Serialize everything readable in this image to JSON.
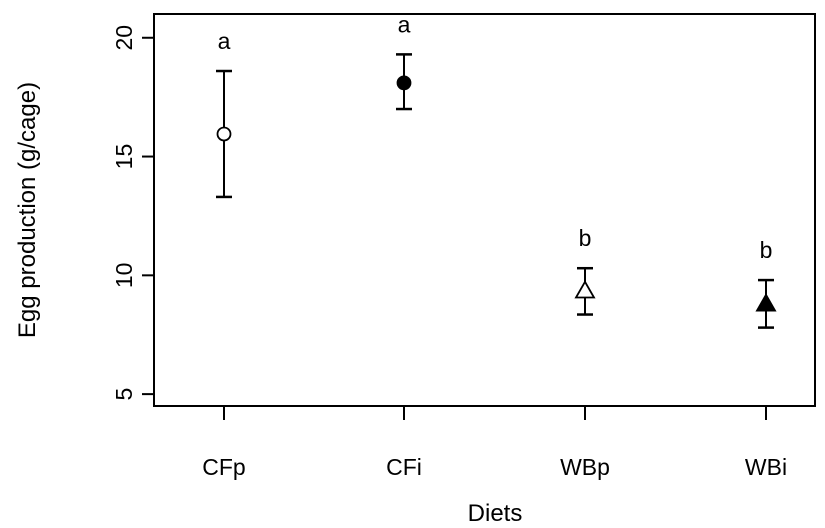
{
  "chart_data": {
    "type": "scatter",
    "title": "",
    "xlabel": "Diets",
    "ylabel": "Egg production (g/cage)",
    "ylim": [
      4.5,
      21.0
    ],
    "yticks": [
      5,
      10,
      15,
      20
    ],
    "grid": false,
    "legend": "none",
    "categories": [
      "CFp",
      "CFi",
      "WBp",
      "WBi"
    ],
    "points": [
      {
        "category": "CFp",
        "mean": 15.95,
        "lower": 13.3,
        "upper": 18.6,
        "marker": "circle-open",
        "group_label": "a"
      },
      {
        "category": "CFi",
        "mean": 18.1,
        "lower": 17.0,
        "upper": 19.3,
        "marker": "circle-filled",
        "group_label": "a"
      },
      {
        "category": "WBp",
        "mean": 9.35,
        "lower": 8.35,
        "upper": 10.3,
        "marker": "triangle-open",
        "group_label": "b"
      },
      {
        "category": "WBi",
        "mean": 8.8,
        "lower": 7.8,
        "upper": 9.8,
        "marker": "triangle-filled",
        "group_label": "b"
      }
    ]
  }
}
